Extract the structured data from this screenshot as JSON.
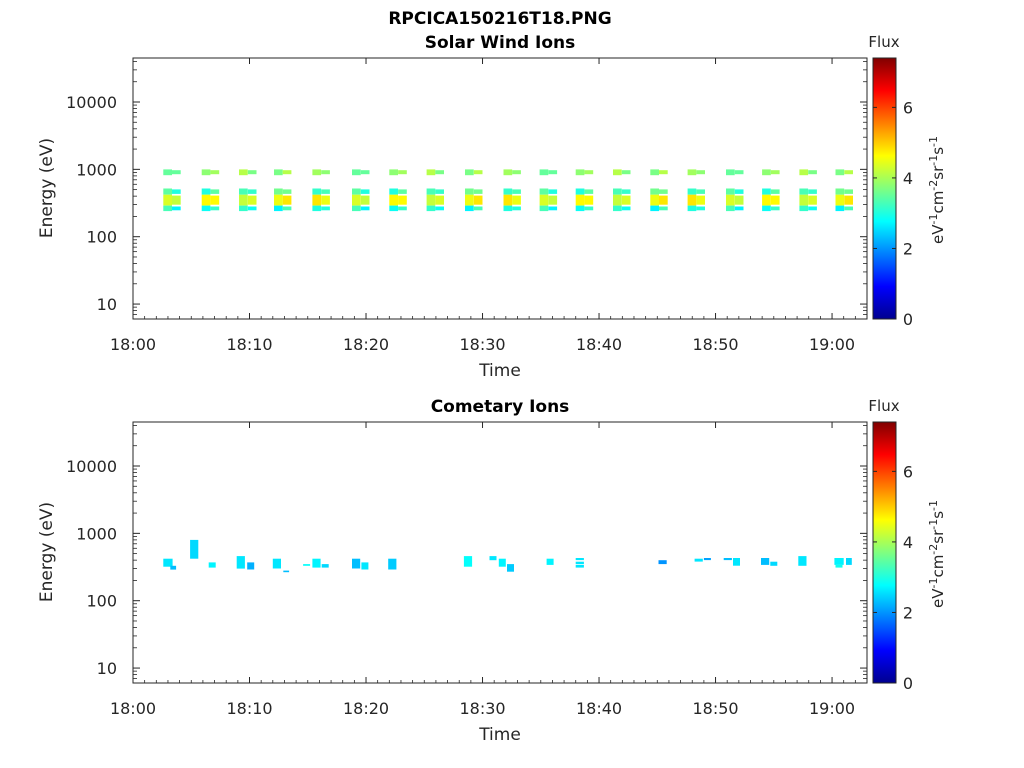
{
  "figure": {
    "title": "RPCICA150216T18.PNG"
  },
  "chart_data": [
    {
      "type": "heatmap",
      "title": "Solar Wind Ions",
      "xlabel": "Time",
      "ylabel": "Energy (eV)",
      "x_ticks": [
        "18:00",
        "18:10",
        "18:20",
        "18:30",
        "18:40",
        "18:50",
        "19:00"
      ],
      "x_range_minutes": [
        0,
        63
      ],
      "y_scale": "log",
      "y_ticks": [
        "10",
        "100",
        "1000",
        "10000"
      ],
      "y_range": [
        6,
        45000
      ],
      "colorbar": {
        "title": "Flux",
        "label": "eV-1cm-2sr-1s-1",
        "ticks": [
          "0",
          "2",
          "4",
          "6"
        ],
        "range": [
          0,
          7.4
        ],
        "colormap": "jet"
      },
      "sweeps_minutes": [
        2.6,
        5.9,
        9.1,
        12.1,
        15.4,
        18.8,
        22.0,
        25.2,
        28.5,
        31.8,
        34.9,
        38.0,
        41.2,
        44.4,
        47.6,
        50.9,
        54.0,
        57.2,
        60.3
      ],
      "bands": [
        {
          "e_low": 820,
          "e_high": 1000,
          "flux": 3.8
        },
        {
          "e_low": 420,
          "e_high": 520,
          "flux": 3.3
        },
        {
          "e_low": 290,
          "e_high": 420,
          "flux": 4.5
        },
        {
          "e_low": 240,
          "e_high": 290,
          "flux": 3.0
        }
      ]
    },
    {
      "type": "heatmap",
      "title": "Cometary Ions",
      "xlabel": "Time",
      "ylabel": "Energy (eV)",
      "x_ticks": [
        "18:00",
        "18:10",
        "18:20",
        "18:30",
        "18:40",
        "18:50",
        "19:00"
      ],
      "x_range_minutes": [
        0,
        63
      ],
      "y_scale": "log",
      "y_ticks": [
        "10",
        "100",
        "1000",
        "10000"
      ],
      "y_range": [
        6,
        45000
      ],
      "colorbar": {
        "title": "Flux",
        "label": "eV-1cm-2sr-1s-1",
        "ticks": [
          "0",
          "2",
          "4",
          "6"
        ],
        "range": [
          0,
          7.4
        ],
        "colormap": "jet"
      },
      "blobs": [
        {
          "t": 2.6,
          "w": 0.8,
          "e_low": 320,
          "e_high": 420,
          "flux": 2.6
        },
        {
          "t": 3.2,
          "w": 0.5,
          "e_low": 290,
          "e_high": 330,
          "flux": 2.3
        },
        {
          "t": 4.9,
          "w": 0.7,
          "e_low": 420,
          "e_high": 800,
          "flux": 2.5
        },
        {
          "t": 6.5,
          "w": 0.6,
          "e_low": 310,
          "e_high": 370,
          "flux": 2.7
        },
        {
          "t": 8.9,
          "w": 0.7,
          "e_low": 300,
          "e_high": 460,
          "flux": 2.6
        },
        {
          "t": 9.8,
          "w": 0.6,
          "e_low": 290,
          "e_high": 370,
          "flux": 2.2
        },
        {
          "t": 12.0,
          "w": 0.7,
          "e_low": 300,
          "e_high": 420,
          "flux": 2.6
        },
        {
          "t": 12.9,
          "w": 0.5,
          "e_low": 265,
          "e_high": 280,
          "flux": 2.3
        },
        {
          "t": 14.6,
          "w": 0.6,
          "e_low": 330,
          "e_high": 350,
          "flux": 2.8
        },
        {
          "t": 15.4,
          "w": 0.7,
          "e_low": 310,
          "e_high": 420,
          "flux": 2.7
        },
        {
          "t": 16.2,
          "w": 0.6,
          "e_low": 310,
          "e_high": 350,
          "flux": 2.5
        },
        {
          "t": 18.8,
          "w": 0.7,
          "e_low": 300,
          "e_high": 420,
          "flux": 2.3
        },
        {
          "t": 19.6,
          "w": 0.6,
          "e_low": 290,
          "e_high": 370,
          "flux": 2.6
        },
        {
          "t": 21.9,
          "w": 0.7,
          "e_low": 290,
          "e_high": 420,
          "flux": 2.4
        },
        {
          "t": 28.4,
          "w": 0.7,
          "e_low": 320,
          "e_high": 460,
          "flux": 2.8
        },
        {
          "t": 30.6,
          "w": 0.6,
          "e_low": 400,
          "e_high": 460,
          "flux": 2.6
        },
        {
          "t": 31.4,
          "w": 0.6,
          "e_low": 320,
          "e_high": 420,
          "flux": 2.7
        },
        {
          "t": 32.1,
          "w": 0.6,
          "e_low": 270,
          "e_high": 350,
          "flux": 2.4
        },
        {
          "t": 35.5,
          "w": 0.6,
          "e_low": 340,
          "e_high": 420,
          "flux": 2.7
        },
        {
          "t": 38.0,
          "w": 0.7,
          "e_low": 310,
          "e_high": 340,
          "flux": 2.6
        },
        {
          "t": 38.0,
          "w": 0.7,
          "e_low": 350,
          "e_high": 380,
          "flux": 2.6
        },
        {
          "t": 38.0,
          "w": 0.7,
          "e_low": 400,
          "e_high": 430,
          "flux": 2.6
        },
        {
          "t": 45.1,
          "w": 0.7,
          "e_low": 350,
          "e_high": 400,
          "flux": 2.0
        },
        {
          "t": 48.2,
          "w": 0.7,
          "e_low": 380,
          "e_high": 420,
          "flux": 2.6
        },
        {
          "t": 49.0,
          "w": 0.6,
          "e_low": 400,
          "e_high": 430,
          "flux": 2.1
        },
        {
          "t": 50.7,
          "w": 0.7,
          "e_low": 400,
          "e_high": 430,
          "flux": 2.3
        },
        {
          "t": 51.5,
          "w": 0.6,
          "e_low": 330,
          "e_high": 430,
          "flux": 2.6
        },
        {
          "t": 53.9,
          "w": 0.7,
          "e_low": 340,
          "e_high": 430,
          "flux": 2.3
        },
        {
          "t": 54.7,
          "w": 0.6,
          "e_low": 330,
          "e_high": 380,
          "flux": 2.5
        },
        {
          "t": 57.1,
          "w": 0.7,
          "e_low": 330,
          "e_high": 460,
          "flux": 2.6
        },
        {
          "t": 60.2,
          "w": 0.8,
          "e_low": 340,
          "e_high": 430,
          "flux": 2.7
        },
        {
          "t": 60.3,
          "w": 0.6,
          "e_low": 310,
          "e_high": 340,
          "flux": 2.9
        },
        {
          "t": 61.2,
          "w": 0.5,
          "e_low": 340,
          "e_high": 430,
          "flux": 2.5
        }
      ]
    }
  ]
}
